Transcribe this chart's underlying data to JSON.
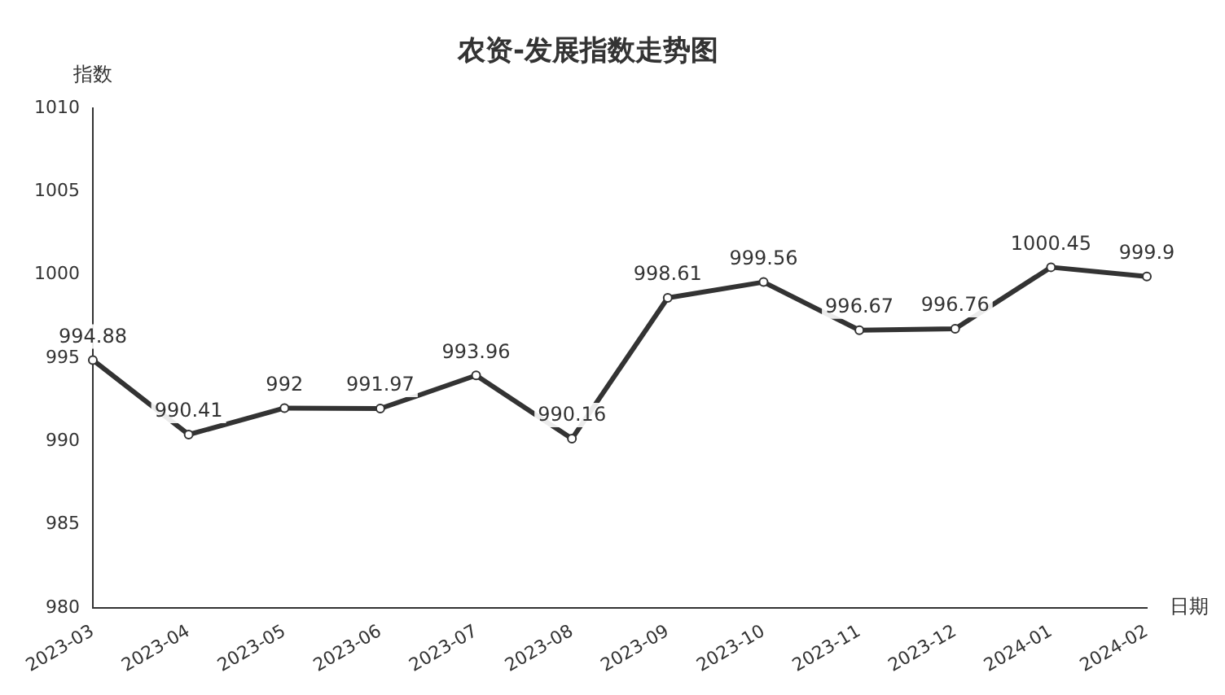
{
  "chart_data": {
    "type": "line",
    "title": "农资-发展指数走势图",
    "xlabel": "日期",
    "ylabel": "指数",
    "categories": [
      "2023-03",
      "2023-04",
      "2023-05",
      "2023-06",
      "2023-07",
      "2023-08",
      "2023-09",
      "2023-10",
      "2023-11",
      "2023-12",
      "2024-01",
      "2024-02"
    ],
    "series": [
      {
        "color": "#333333",
        "values": [
          994.88,
          990.41,
          992,
          991.97,
          993.96,
          990.16,
          998.61,
          999.56,
          996.67,
          996.76,
          1000.45,
          999.9
        ]
      }
    ],
    "ylim": [
      980,
      1010
    ],
    "yticks": [
      980,
      985,
      990,
      995,
      1000,
      1005,
      1010
    ],
    "grid": false,
    "legend": false,
    "marker": "circle",
    "line_style": "solid",
    "data_labels": true
  }
}
